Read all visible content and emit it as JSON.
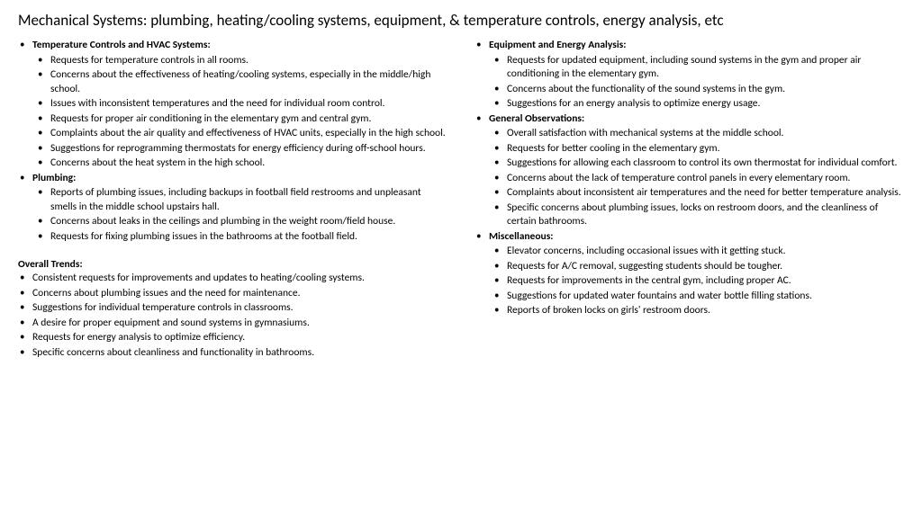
{
  "title": "Mechanical Systems: plumbing, heating/cooling systems, equipment, & temperature controls, energy analysis, etc",
  "leftSections": [
    {
      "heading": "Temperature Controls and HVAC Systems:",
      "items": [
        "Requests for temperature controls in all rooms.",
        "Concerns about the effectiveness of heating/cooling systems, especially in the middle/high school.",
        "Issues with inconsistent temperatures and the need for individual room control.",
        "Requests for proper air conditioning in the elementary gym and central gym.",
        "Complaints about the air quality and effectiveness of HVAC units, especially in the high school.",
        "Suggestions for reprogramming thermostats for energy efficiency during off-school hours.",
        "Concerns about the heat system in the high school."
      ]
    },
    {
      "heading": "Plumbing:",
      "items": [
        "Reports of plumbing issues, including backups in football field restrooms and unpleasant smells in the middle school upstairs hall.",
        "Concerns about leaks in the ceilings and plumbing in the weight room/field house.",
        "Requests for fixing plumbing issues in the bathrooms at the football field."
      ]
    }
  ],
  "rightSections": [
    {
      "heading": "Equipment and Energy Analysis:",
      "items": [
        "Requests for updated equipment, including sound systems in the gym and proper air conditioning in the elementary gym.",
        "Concerns about the functionality of the sound systems in the gym.",
        "Suggestions for an energy analysis to optimize energy usage."
      ]
    },
    {
      "heading": "General Observations:",
      "items": [
        "Overall satisfaction with mechanical systems at the middle school.",
        "Requests for better cooling in the elementary gym.",
        "Suggestions for allowing each classroom to control its own thermostat for individual comfort.",
        "Concerns about the lack of temperature control panels in every elementary room.",
        "Complaints about inconsistent air temperatures and the need for better temperature analysis.",
        "Specific concerns about plumbing issues, locks on restroom doors, and the cleanliness of certain bathrooms."
      ]
    },
    {
      "heading": "Miscellaneous:",
      "items": [
        "Elevator concerns, including occasional issues with it getting stuck.",
        "Requests for A/C removal, suggesting students should be tougher.",
        "Requests for improvements in the central gym, including proper AC.",
        "Suggestions for updated water fountains and water bottle filling stations.",
        "Reports of broken locks on girls' restroom doors."
      ]
    }
  ],
  "trendsHeading": "Overall Trends:",
  "trends": [
    "Consistent requests for improvements and updates to heating/cooling systems.",
    "Concerns about plumbing issues and the need for maintenance.",
    "Suggestions for individual temperature controls in classrooms.",
    "A desire for proper equipment and sound systems in gymnasiums.",
    "Requests for energy analysis to optimize efficiency.",
    "Specific concerns about cleanliness and functionality in bathrooms."
  ]
}
